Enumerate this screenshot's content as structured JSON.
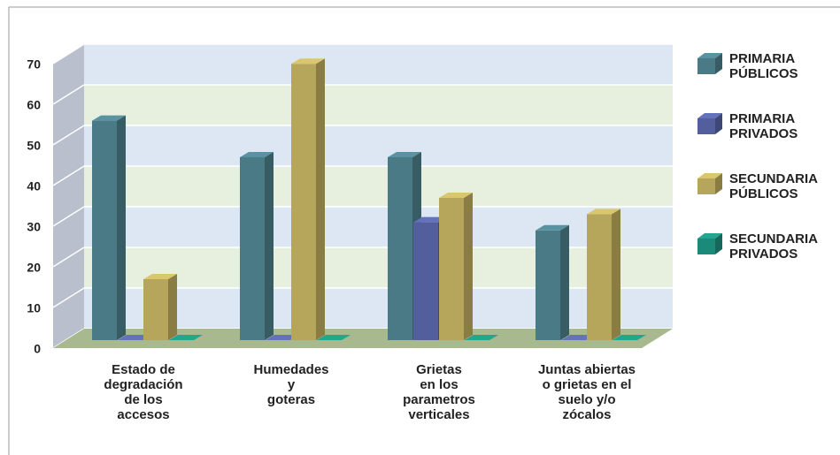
{
  "chart_data": {
    "type": "bar3d",
    "categories": [
      "Estado de\ndegradación\nde los\naccesos",
      "Humedades\ny\ngoteras",
      "Grietas\nen los\nparametros\nverticales",
      "Juntas abiertas\no grietas en el\nsuelo y/o\nzócalos"
    ],
    "series": [
      {
        "name": "PRIMARIA\nPÚBLICOS",
        "color": "#4a7a85",
        "values": [
          54,
          45,
          45,
          27
        ]
      },
      {
        "name": "PRIMARIA\nPRIVADOS",
        "color": "#535f9c",
        "values": [
          0,
          0,
          29,
          0
        ]
      },
      {
        "name": "SECUNDARIA\nPÚBLICOS",
        "color": "#b6a65b",
        "values": [
          15,
          68,
          35,
          31
        ]
      },
      {
        "name": "SECUNDARIA\nPRIVADOS",
        "color": "#1c8a78",
        "values": [
          0,
          0,
          0,
          0
        ]
      }
    ],
    "ylim": [
      0,
      70
    ],
    "yticks": [
      0,
      10,
      20,
      30,
      40,
      50,
      60,
      70
    ],
    "grid": true,
    "legend": "right"
  }
}
